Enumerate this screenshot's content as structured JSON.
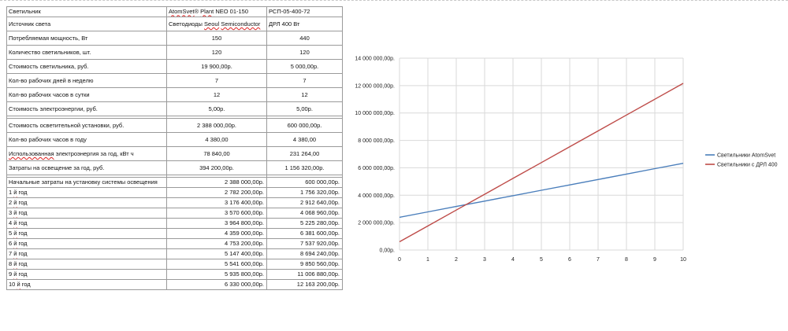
{
  "table": {
    "rows": [
      {
        "type": "small",
        "label": "Светильник",
        "v1": "AtomSvet® Plant NEO 01-150",
        "v2": "РСП-05-400-72",
        "align": "left",
        "spell": "atom"
      },
      {
        "type": "big",
        "label": "Источник света",
        "v1": "Светодиоды Seoul Semiconductor",
        "v2": "ДРЛ 400 Вт",
        "align": "left",
        "spell": "seoul"
      },
      {
        "type": "big",
        "label": "Потребляемая мощность, Вт",
        "v1": "150",
        "v2": "440"
      },
      {
        "type": "big",
        "label": "Количество светильников, шт.",
        "v1": "120",
        "v2": "120"
      },
      {
        "type": "big",
        "label": "Стоимость светильника, руб.",
        "v1": "19 900,00р.",
        "v2": "5 000,00р."
      },
      {
        "type": "big",
        "label": "Кол-во рабочих дней в неделю",
        "v1": "7",
        "v2": "7"
      },
      {
        "type": "big",
        "label": "Кол-во рабочих часов в сутки",
        "v1": "12",
        "v2": "12"
      },
      {
        "type": "big",
        "label": "Стоимость электроэнергии, руб.",
        "v1": "5,00р.",
        "v2": "5,00р."
      },
      {
        "type": "sep"
      },
      {
        "type": "big",
        "label": "Стоимость осветительной установки, руб.",
        "v1": "2 388 000,00р.",
        "v2": "600 000,00р."
      },
      {
        "type": "big",
        "label": "Кол-во рабочих часов в году",
        "v1": "4 380,00",
        "v2": "4 380,00"
      },
      {
        "type": "big",
        "label": "Использованная электроэнергия за год, кВт ч",
        "v1": "78 840,00",
        "v2": "231 264,00",
        "spell": "energy"
      },
      {
        "type": "big",
        "label": "Затраты на освещение за год, руб.",
        "v1": "394 200,00р.",
        "v2": "1 156 320,00р."
      },
      {
        "type": "sep"
      },
      {
        "type": "small",
        "label": "Начальные затраты на установку системы освещения",
        "v1": "2 388 000,00р.",
        "v2": "600 000,00р.",
        "align": "right"
      },
      {
        "type": "small",
        "label": "1 й год",
        "v1": "2 782 200,00р.",
        "v2": "1 756 320,00р.",
        "align": "right",
        "spell": "year"
      },
      {
        "type": "small",
        "label": "2 й год",
        "v1": "3 176 400,00р.",
        "v2": "2 912 640,00р.",
        "align": "right",
        "spell": "year"
      },
      {
        "type": "small",
        "label": "3 й год",
        "v1": "3 570 600,00р.",
        "v2": "4 068 960,00р.",
        "align": "right",
        "spell": "year"
      },
      {
        "type": "small",
        "label": "4 й год",
        "v1": "3 964 800,00р.",
        "v2": "5 225 280,00р.",
        "align": "right",
        "spell": "year"
      },
      {
        "type": "small",
        "label": "5 й год",
        "v1": "4 359 000,00р.",
        "v2": "6 381 600,00р.",
        "align": "right",
        "spell": "year"
      },
      {
        "type": "small",
        "label": "6 й год",
        "v1": "4 753 200,00р.",
        "v2": "7 537 920,00р.",
        "align": "right",
        "spell": "year"
      },
      {
        "type": "small",
        "label": "7 й год",
        "v1": "5 147 400,00р.",
        "v2": "8 694 240,00р.",
        "align": "right",
        "spell": "year"
      },
      {
        "type": "small",
        "label": "8 й год",
        "v1": "5 541 600,00р.",
        "v2": "9 850 560,00р.",
        "align": "right",
        "spell": "year"
      },
      {
        "type": "small",
        "label": "9 й год",
        "v1": "5 935 800,00р.",
        "v2": "11 006 880,00р.",
        "align": "right",
        "spell": "year"
      },
      {
        "type": "small",
        "label": "10 й год",
        "v1": "6 330 000,00р.",
        "v2": "12 163 200,00р.",
        "align": "right",
        "spell": "year"
      }
    ]
  },
  "chart_data": {
    "type": "line",
    "x": [
      0,
      1,
      2,
      3,
      4,
      5,
      6,
      7,
      8,
      9,
      10
    ],
    "ylim": [
      0,
      14000000
    ],
    "yticks": [
      0,
      2000000,
      4000000,
      6000000,
      8000000,
      10000000,
      12000000,
      14000000
    ],
    "ytick_labels": [
      "0,00р.",
      "2 000 000,00р.",
      "4 000 000,00р.",
      "6 000 000,00р.",
      "8 000 000,00р.",
      "10 000 000,00р.",
      "12 000 000,00р.",
      "14 000 000,00р."
    ],
    "grid": true,
    "legend_position": "right",
    "series": [
      {
        "name": "Светильники AtomSvet",
        "color": "#4a7ebb",
        "values": [
          2388000,
          2782200,
          3176400,
          3570600,
          3964800,
          4359000,
          4753200,
          5147400,
          5541600,
          5935800,
          6330000
        ]
      },
      {
        "name": "Светильники с ДРЛ 400",
        "color": "#be4b48",
        "values": [
          600000,
          1756320,
          2912640,
          4068960,
          5225280,
          6381600,
          7537920,
          8694240,
          9850560,
          11006880,
          12163200
        ]
      }
    ]
  }
}
